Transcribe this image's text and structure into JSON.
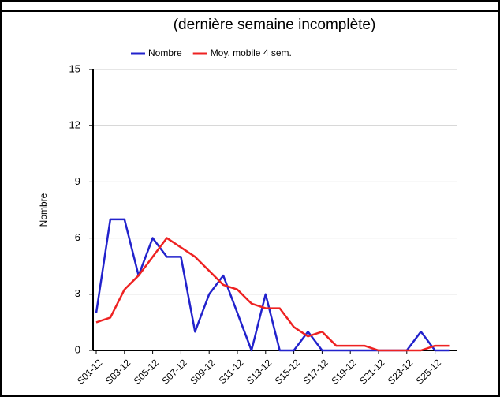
{
  "chart_data": {
    "type": "line",
    "subtitle": "(dernière semaine incomplète)",
    "y_label": "Nombre",
    "categories": [
      "S01-12",
      null,
      "S03-12",
      null,
      "S05-12",
      null,
      "S07-12",
      null,
      "S09-12",
      null,
      "S11-12",
      null,
      "S13-12",
      null,
      "S15-12",
      null,
      "S17-12",
      null,
      "S19-12",
      null,
      "S21-12",
      null,
      "S23-12",
      null,
      "S25-12",
      null
    ],
    "series": [
      {
        "name": "Nombre",
        "color": "#2222cc",
        "values": [
          2,
          7,
          7,
          4,
          6,
          5,
          5,
          1,
          3,
          4,
          2,
          0,
          3,
          0,
          0,
          1,
          0,
          0,
          0,
          0,
          0,
          0,
          0,
          1,
          0,
          0
        ]
      },
      {
        "name": "Moy. mobile 4 sem.",
        "color": "#ee2222",
        "values": [
          1.5,
          1.75,
          3.25,
          4,
          5,
          6,
          5.5,
          5,
          4.25,
          3.5,
          3.25,
          2.5,
          2.25,
          2.25,
          1.25,
          0.75,
          1,
          0.25,
          0.25,
          0.25,
          0,
          0,
          0,
          0,
          0.25,
          0.25
        ]
      }
    ],
    "ylim": [
      0,
      15
    ],
    "yticks": [
      0,
      3,
      6,
      9,
      12,
      15
    ],
    "grid": true,
    "legend": "top"
  }
}
